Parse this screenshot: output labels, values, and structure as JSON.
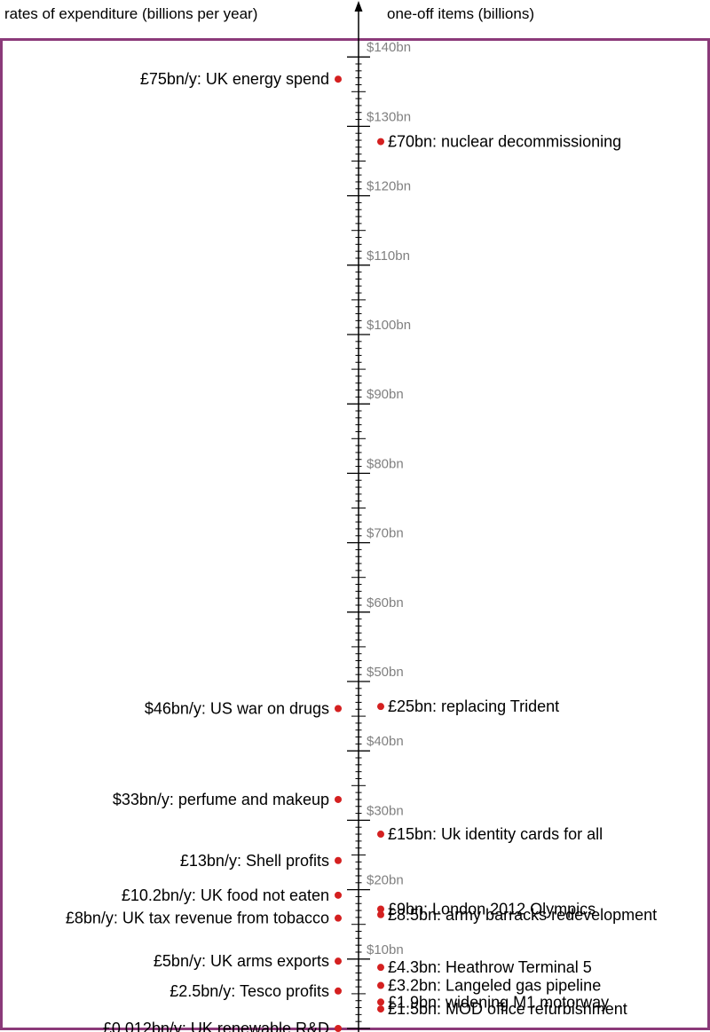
{
  "headings": {
    "left": "rates of expenditure (billions per year)",
    "right": "one-off items (billions)"
  },
  "colors": {
    "frame": "#8b3a7a",
    "dot": "#d42020",
    "axis": "#000000",
    "tick_label": "#808080",
    "text": "#000000"
  },
  "chart_data": {
    "type": "scatter",
    "title": "",
    "xlabel": "",
    "ylabel": "",
    "ylim": [
      0,
      140
    ],
    "y_unit": "bn",
    "tick_labels": [
      "$140bn",
      "$130bn",
      "$120bn",
      "$110bn",
      "$100bn",
      "$90bn",
      "$80bn",
      "$70bn",
      "$60bn",
      "$50bn",
      "$40bn",
      "$30bn",
      "$20bn",
      "$10bn"
    ],
    "tick_values": [
      140,
      130,
      120,
      110,
      100,
      90,
      80,
      70,
      60,
      50,
      40,
      30,
      20,
      10
    ],
    "minor_tick_step": 1,
    "series": [
      {
        "name": "rates of expenditure (billions per year)",
        "side": "left",
        "points": [
          {
            "label": "£75bn/y: UK energy spend",
            "y": 136.8
          },
          {
            "label": "$46bn/y: US war on drugs",
            "y": 46.1
          },
          {
            "label": "$33bn/y: perfume and makeup",
            "y": 33.0
          },
          {
            "label": "£13bn/y: Shell profits",
            "y": 24.2
          },
          {
            "label": "£10.2bn/y: UK food not eaten",
            "y": 19.2
          },
          {
            "label": "£8bn/y: UK tax revenue from tobacco",
            "y": 15.9
          },
          {
            "label": "£5bn/y: UK arms exports",
            "y": 9.7
          },
          {
            "label": "£2.5bn/y: Tesco profits",
            "y": 5.4
          },
          {
            "label": "£0.012bn/y: UK renewable R&D",
            "y": 0.0
          }
        ]
      },
      {
        "name": "one-off items (billions)",
        "side": "right",
        "points": [
          {
            "label": "£70bn: nuclear decommissioning",
            "y": 127.8
          },
          {
            "label": "£25bn: replacing Trident",
            "y": 46.4
          },
          {
            "label": "£15bn: Uk identity cards for all",
            "y": 28.0
          },
          {
            "label": "£9bn: London 2012 Olympics",
            "y": 17.2
          },
          {
            "label": "£8.5bn: army barracks redevelopment",
            "y": 16.4
          },
          {
            "label": "£4.3bn: Heathrow Terminal 5",
            "y": 8.8
          },
          {
            "label": "£3.2bn: Langeled gas pipeline",
            "y": 6.2
          },
          {
            "label": "£1.9bn: widening M1 motorway",
            "y": 3.8
          },
          {
            "label": "£1.5bn: MOD office refurbishment",
            "y": 2.8
          }
        ]
      }
    ]
  }
}
